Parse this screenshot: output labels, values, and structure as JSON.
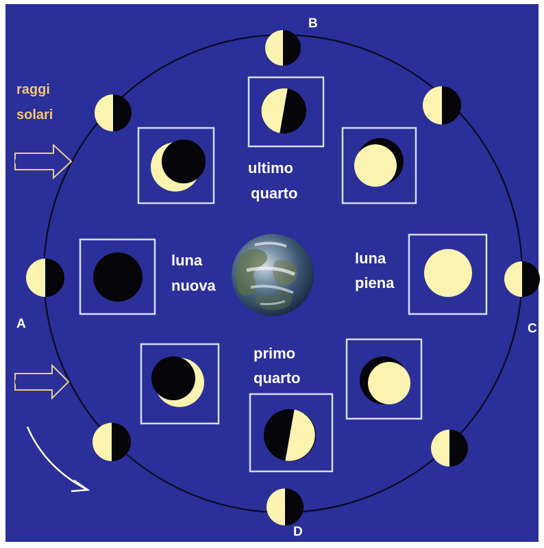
{
  "colors": {
    "background": "#2b2f9a",
    "orbit": "#0a0a1e",
    "lit": "#fbf3b0",
    "dark": "#05050a",
    "box": "#d8dcf6",
    "sun_text": "#f2c870",
    "text": "#ffffff",
    "arrow_outline": "#e8cf8e",
    "arrow_fill": "#2b2f9a"
  },
  "labels": {
    "sun_rays": [
      "raggi",
      "solari"
    ],
    "new_moon": [
      "luna",
      "nuova"
    ],
    "full_moon": [
      "luna",
      "piena"
    ],
    "last_quarter": [
      "ultimo",
      "quarto"
    ],
    "first_quarter": [
      "primo",
      "quarto"
    ]
  },
  "points": {
    "a": "A",
    "b": "B",
    "c": "C",
    "d": "D"
  },
  "icons": {
    "earth": "earth-globe-icon",
    "sun_arrow": "double-line-arrow-icon",
    "direction_arrow": "curved-arrow-icon"
  }
}
